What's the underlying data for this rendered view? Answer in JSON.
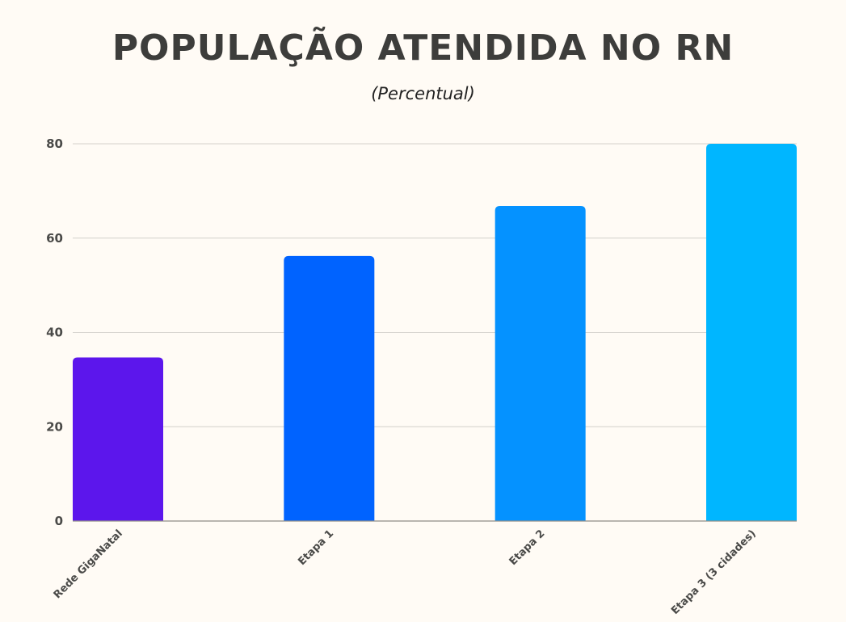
{
  "chart_data": {
    "type": "bar",
    "title": "POPULAÇÃO ATENDIDA NO RN",
    "subtitle": "(Percentual)",
    "xlabel": "",
    "ylabel": "",
    "categories": [
      "Rede GigaNatal",
      "Etapa 1",
      "Etapa 2",
      "Etapa 3 (3 cidades)"
    ],
    "values": [
      34.7,
      56.2,
      66.8,
      80
    ],
    "colors": [
      "#5c16ec",
      "#0063ff",
      "#0592ff",
      "#00b6ff"
    ],
    "ylim": [
      0,
      80
    ],
    "yticks": [
      0,
      20,
      40,
      60,
      80
    ],
    "grid": true,
    "legend": "none"
  }
}
